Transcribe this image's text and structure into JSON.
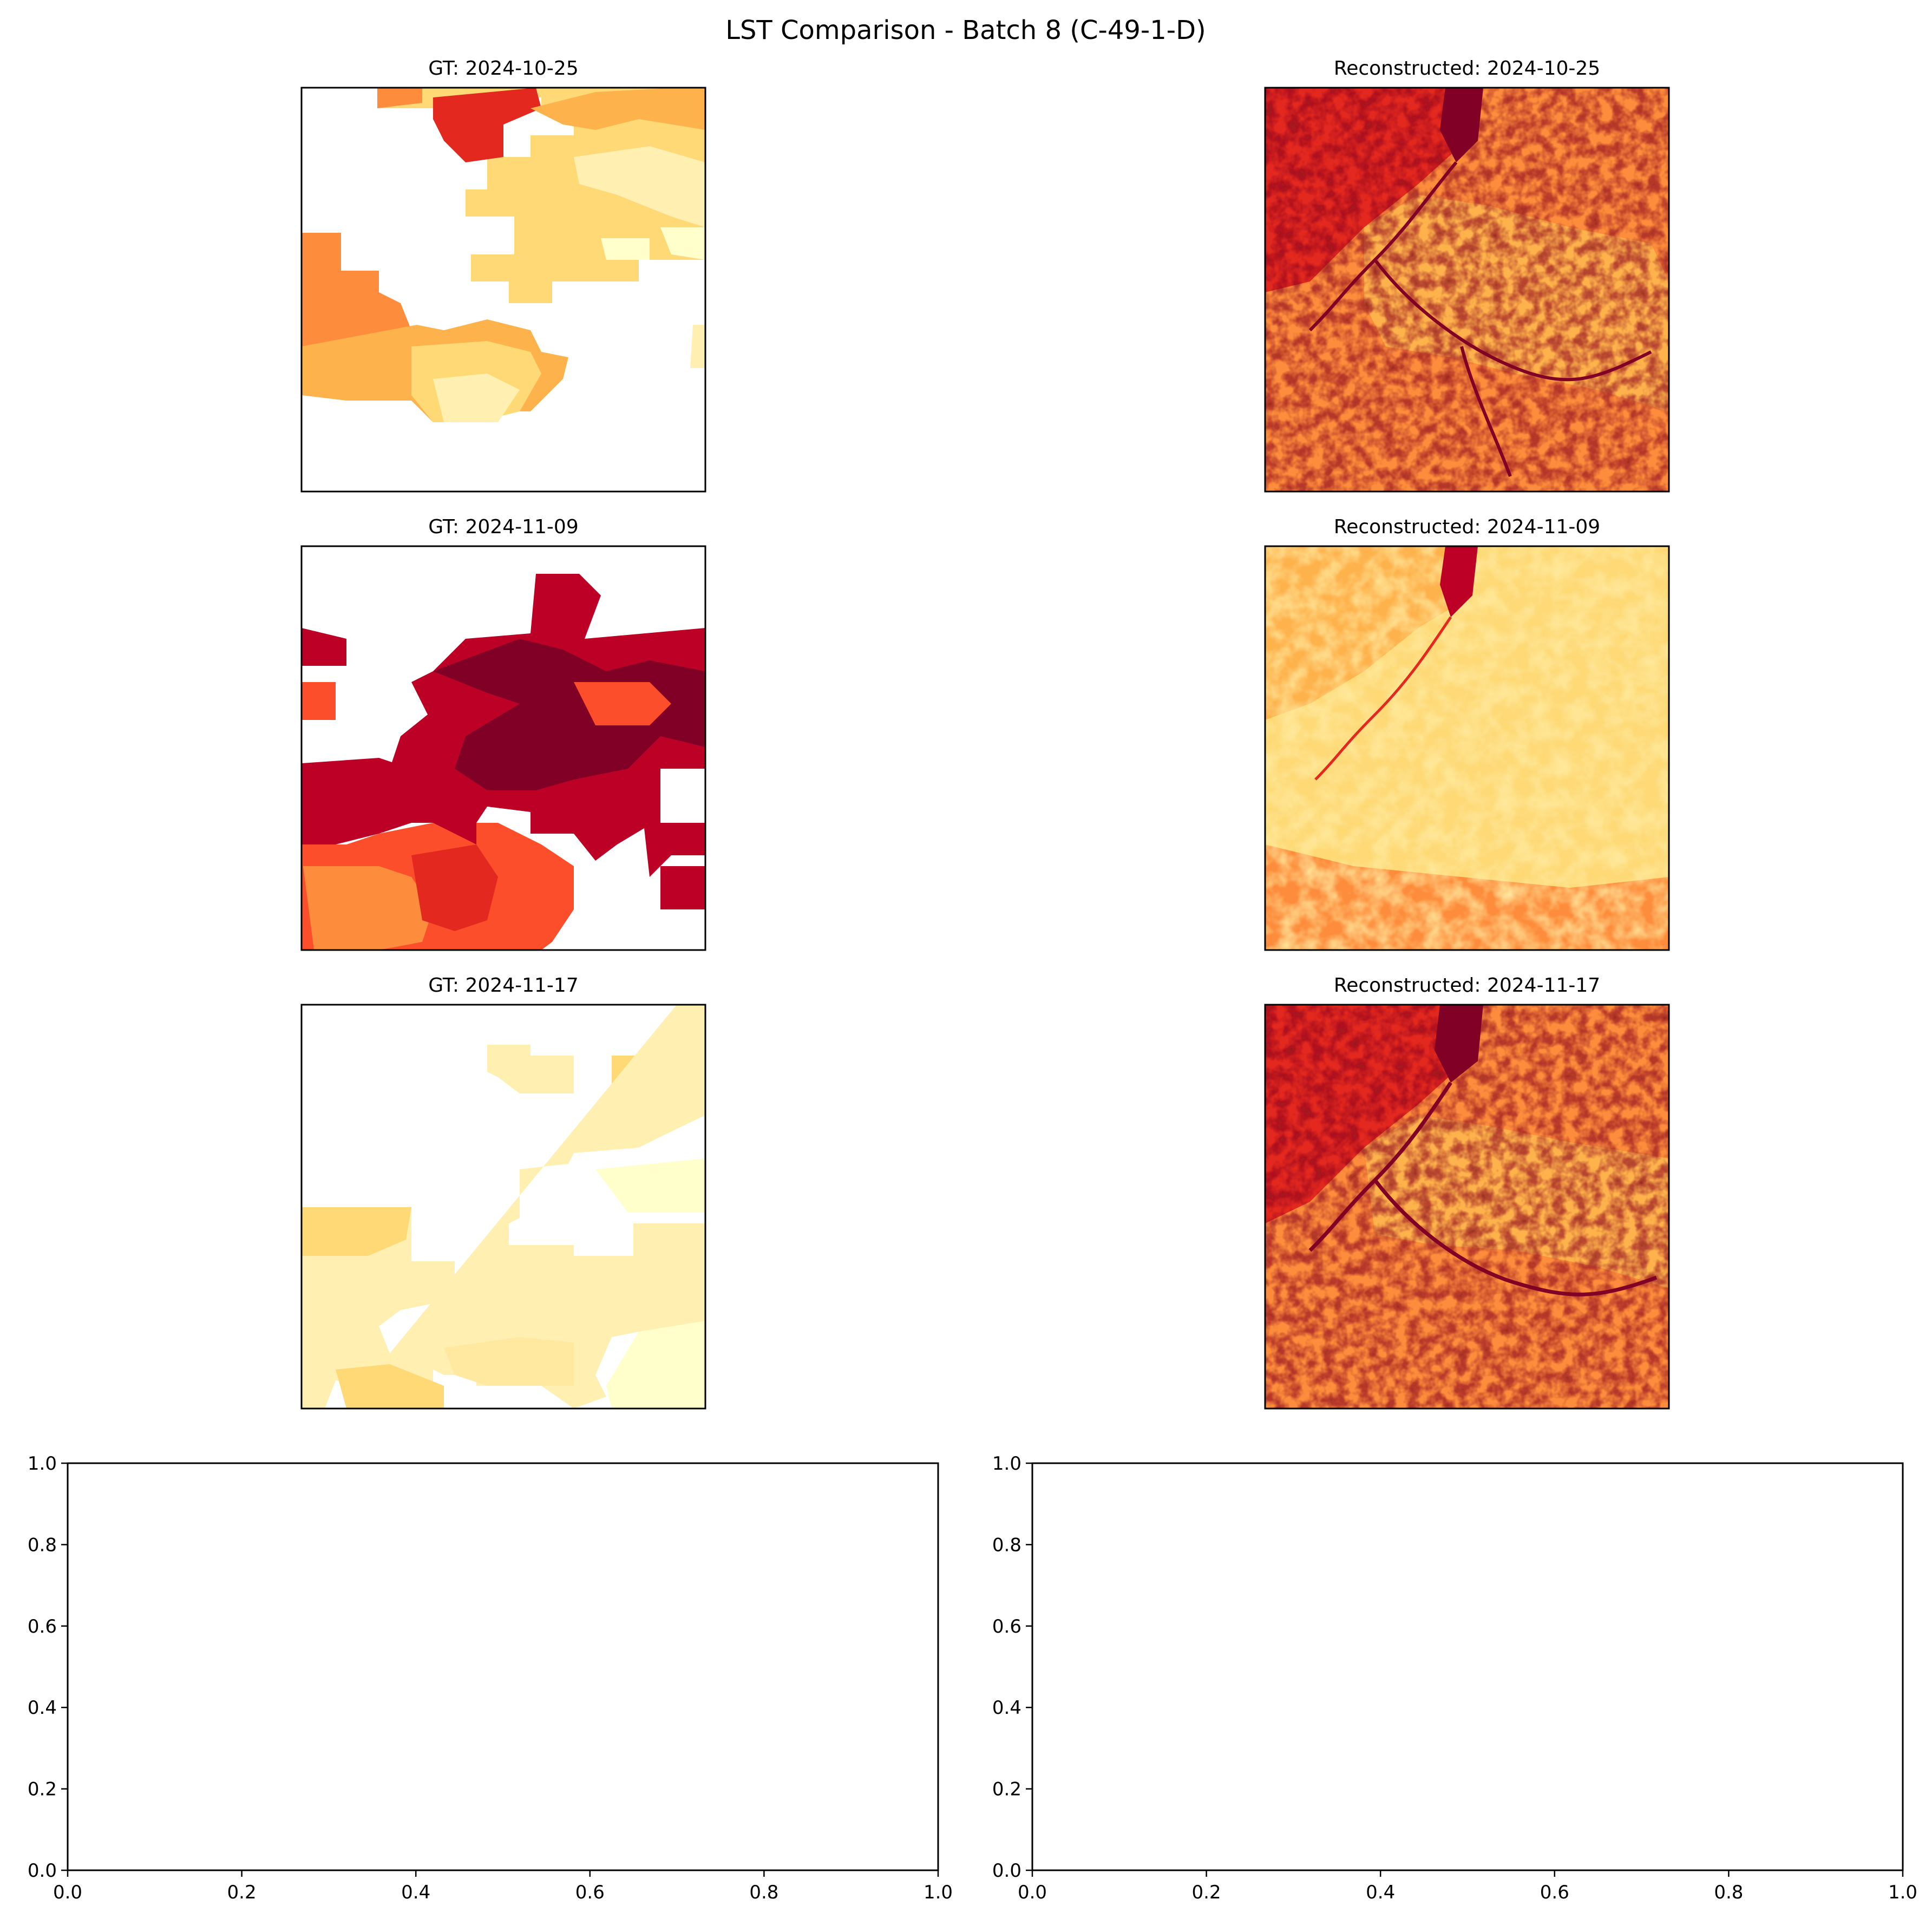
{
  "figure": {
    "suptitle": "LST Comparison - Batch 8 (C-49-1-D)"
  },
  "panels": [
    {
      "title": "GT: 2024-10-25",
      "kind": "gt",
      "colormap": "YlOrRd"
    },
    {
      "title": "Reconstructed: 2024-10-25",
      "kind": "recon",
      "colormap": "YlOrRd"
    },
    {
      "title": "GT: 2024-11-09",
      "kind": "gt",
      "colormap": "YlOrRd"
    },
    {
      "title": "Reconstructed: 2024-11-09",
      "kind": "recon",
      "colormap": "YlOrRd"
    },
    {
      "title": "GT: 2024-11-17",
      "kind": "gt",
      "colormap": "YlOrRd"
    },
    {
      "title": "Reconstructed: 2024-11-17",
      "kind": "recon",
      "colormap": "YlOrRd"
    }
  ],
  "chart_data": [
    {
      "type": "heatmap",
      "title": "GT: 2024-10-25",
      "colormap": "YlOrRd",
      "missing": "white (masked)",
      "tone": "orange to pale yellow, large gaps"
    },
    {
      "type": "heatmap",
      "title": "Reconstructed: 2024-10-25",
      "colormap": "YlOrRd",
      "missing": "none",
      "tone": "red-orange, dark river network"
    },
    {
      "type": "heatmap",
      "title": "GT: 2024-11-09",
      "colormap": "YlOrRd",
      "missing": "white (masked)",
      "tone": "dark red to orange, gaps"
    },
    {
      "type": "heatmap",
      "title": "Reconstructed: 2024-11-09",
      "colormap": "YlOrRd",
      "missing": "none",
      "tone": "pale yellow-orange"
    },
    {
      "type": "heatmap",
      "title": "GT: 2024-11-17",
      "colormap": "YlOrRd",
      "missing": "white (masked)",
      "tone": "pale yellow, mostly gaps"
    },
    {
      "type": "heatmap",
      "title": "Reconstructed: 2024-11-17",
      "colormap": "YlOrRd",
      "missing": "none",
      "tone": "dark red-orange, river network"
    },
    {
      "type": "line",
      "title": "",
      "series": [],
      "xlim": [
        0.0,
        1.0
      ],
      "ylim": [
        0.0,
        1.0
      ],
      "xticks": [
        "0.0",
        "0.2",
        "0.4",
        "0.6",
        "0.8",
        "1.0"
      ],
      "yticks": [
        "0.0",
        "0.2",
        "0.4",
        "0.6",
        "0.8",
        "1.0"
      ]
    },
    {
      "type": "line",
      "title": "",
      "series": [],
      "xlim": [
        0.0,
        1.0
      ],
      "ylim": [
        0.0,
        1.0
      ],
      "xticks": [
        "0.0",
        "0.2",
        "0.4",
        "0.6",
        "0.8",
        "1.0"
      ],
      "yticks": [
        "0.0",
        "0.2",
        "0.4",
        "0.6",
        "0.8",
        "1.0"
      ]
    }
  ]
}
